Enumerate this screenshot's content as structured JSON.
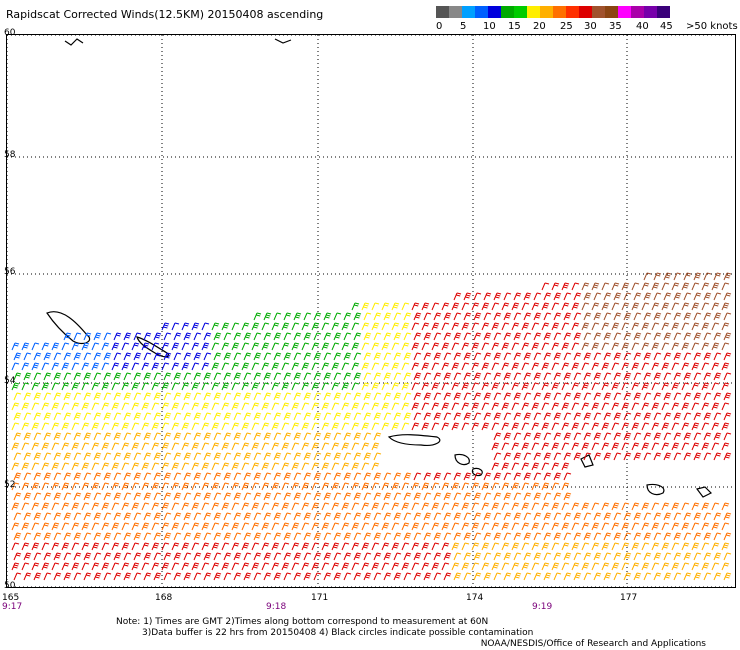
{
  "title": "Rapidscat Corrected Winds(12.5KM) 20150408 ascending",
  "legend": {
    "colors": [
      "#555555",
      "#888888",
      "#00a0ff",
      "#0060ff",
      "#0000dd",
      "#00aa00",
      "#00cc00",
      "#ffee00",
      "#ffb000",
      "#ff7000",
      "#ff3000",
      "#dd0000",
      "#a0522d",
      "#8b4513",
      "#ff00ff",
      "#aa00aa",
      "#7700aa",
      "#3a007a"
    ],
    "labels": [
      "0",
      "5",
      "10",
      "15",
      "20",
      "25",
      "30",
      "35",
      "40",
      "45",
      ">50 knots"
    ]
  },
  "map": {
    "lat_labels": [
      "60",
      "58",
      "56",
      "54",
      "52",
      "50"
    ],
    "lon_labels": [
      "165",
      "168",
      "171",
      "174",
      "177"
    ],
    "time_labels": [
      "9:17",
      "9:18",
      "9:19"
    ],
    "lat_range": [
      50,
      60
    ],
    "lon_range": [
      165,
      179
    ],
    "grid": true
  },
  "notes": {
    "line1": "Note: 1) Times are GMT 2)Times along bottom correspond to measurement at 60N",
    "line2": "3)Data buffer is 22 hrs from 20150408 4) Black circles indicate possible contamination"
  },
  "credit": "NOAA/NESDIS/Office of Research and Applications"
}
